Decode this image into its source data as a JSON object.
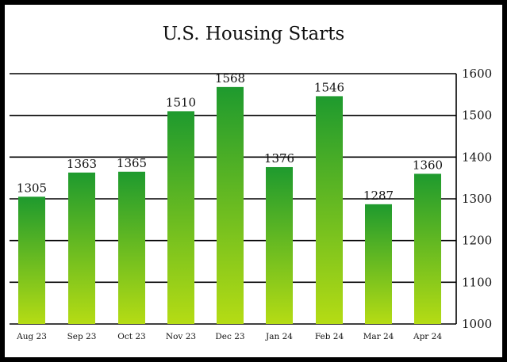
{
  "chart_data": {
    "type": "bar",
    "title": "U.S. Housing Starts",
    "categories": [
      "Aug 23",
      "Sep 23",
      "Oct 23",
      "Nov 23",
      "Dec 23",
      "Jan 24",
      "Feb 24",
      "Mar 24",
      "Apr 24"
    ],
    "values": [
      1305,
      1363,
      1365,
      1510,
      1568,
      1376,
      1546,
      1287,
      1360
    ],
    "ylim": [
      1000,
      1600
    ],
    "yticks": [
      1000,
      1100,
      1200,
      1300,
      1400,
      1500,
      1600
    ],
    "y_axis_side": "right",
    "grid": true,
    "colors": {
      "bar_top": "#1e9a2e",
      "bar_bottom": "#b5dc14",
      "frame": "#000000"
    }
  }
}
